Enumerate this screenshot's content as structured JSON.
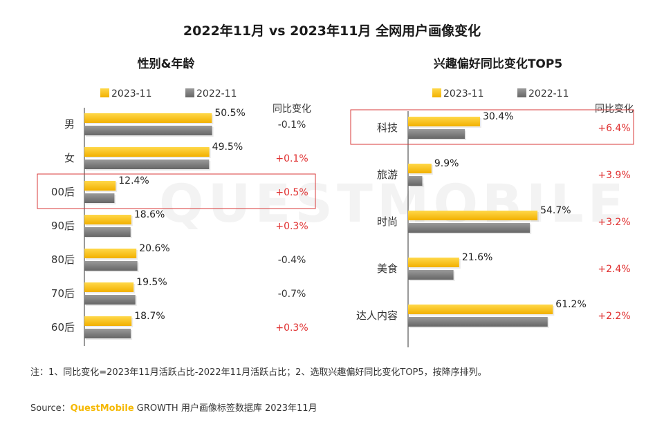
{
  "title": "2022年11月 vs 2023年11月 全网用户画像变化",
  "note": "注：1、同比变化=2023年11月活跃占比-2022年11月活跃占比；2、选取兴趣偏好同比变化TOP5，按降序排列。",
  "source": {
    "prefix": "Source：",
    "brand": "QuestMobile",
    "suffix": " GROWTH 用户画像标签数据库 2023年11月"
  },
  "watermark": "QUESTMOBILE",
  "colors": {
    "bar_2023": "#f5b800",
    "bar_2022": "#7a7a7a",
    "positive": "#e03030",
    "negative": "#333333",
    "highlight_border": "#d93a3a"
  },
  "chart_data": [
    {
      "type": "bar",
      "orientation": "horizontal",
      "title": "性别&年龄",
      "legend": [
        "2023-11",
        "2022-11"
      ],
      "change_header": "同比变化",
      "categories": [
        "男",
        "女",
        "00后",
        "90后",
        "80后",
        "70后",
        "60后"
      ],
      "series": [
        {
          "name": "2023-11",
          "values": [
            50.5,
            49.5,
            12.4,
            18.6,
            20.6,
            19.5,
            18.7
          ]
        },
        {
          "name": "2022-11",
          "values": [
            50.6,
            49.4,
            11.9,
            18.3,
            21.0,
            20.2,
            18.4
          ]
        }
      ],
      "value_labels": [
        "50.5%",
        "49.5%",
        "12.4%",
        "18.6%",
        "20.6%",
        "19.5%",
        "18.7%"
      ],
      "changes": [
        "-0.1%",
        "+0.1%",
        "+0.5%",
        "+0.3%",
        "-0.4%",
        "-0.7%",
        "+0.3%"
      ],
      "highlight_index": 2
    },
    {
      "type": "bar",
      "orientation": "horizontal",
      "title": "兴趣偏好同比变化TOP5",
      "legend": [
        "2023-11",
        "2022-11"
      ],
      "change_header": "同比变化",
      "categories": [
        "科技",
        "旅游",
        "时尚",
        "美食",
        "达人内容"
      ],
      "series": [
        {
          "name": "2023-11",
          "values": [
            30.4,
            9.9,
            54.7,
            21.6,
            61.2
          ]
        },
        {
          "name": "2022-11",
          "values": [
            24.0,
            6.0,
            51.5,
            19.2,
            59.0
          ]
        }
      ],
      "value_labels": [
        "30.4%",
        "9.9%",
        "54.7%",
        "21.6%",
        "61.2%"
      ],
      "changes": [
        "+6.4%",
        "+3.9%",
        "+3.2%",
        "+2.4%",
        "+2.2%"
      ],
      "highlight_index": 0
    }
  ]
}
